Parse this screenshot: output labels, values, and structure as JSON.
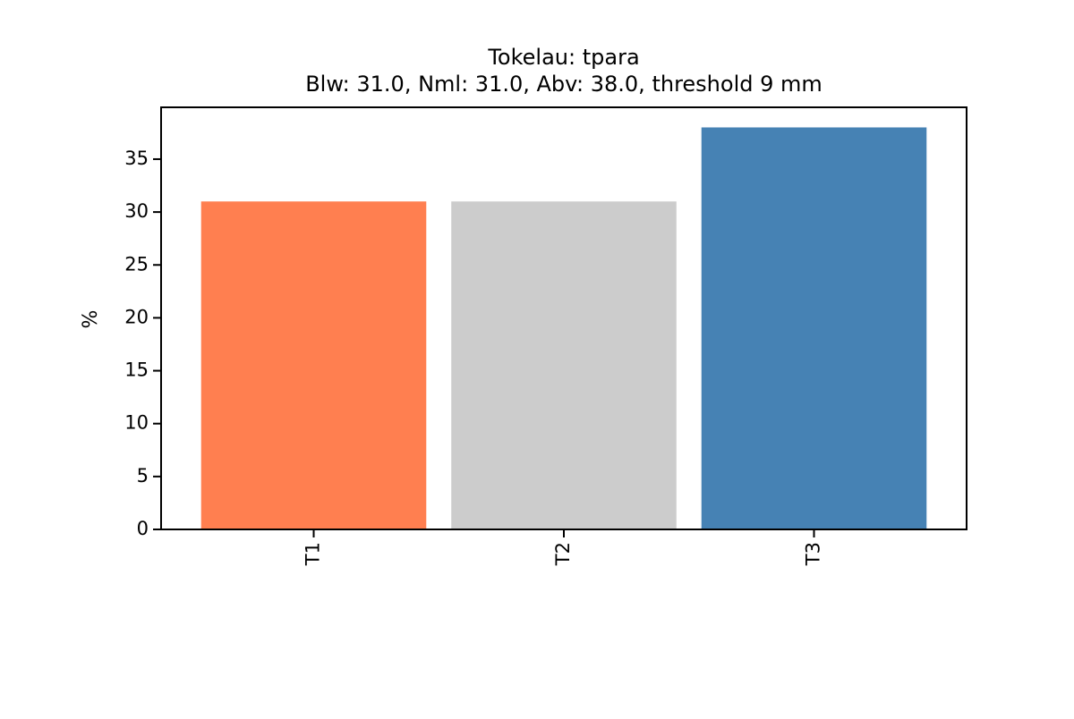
{
  "chart_data": {
    "type": "bar",
    "title": "Tokelau: tpara",
    "subtitle": "Blw: 31.0, Nml: 31.0, Abv: 38.0, threshold 9 mm",
    "xlabel": "",
    "ylabel": "%",
    "categories": [
      "T1",
      "T2",
      "T3"
    ],
    "values": [
      31.0,
      31.0,
      38.0
    ],
    "colors": [
      "#ff7f50",
      "#cccccc",
      "#4682b4"
    ],
    "ylim": [
      0,
      39.9
    ],
    "yticks": [
      0,
      5,
      10,
      15,
      20,
      25,
      30,
      35
    ],
    "grid": false,
    "legend": "none"
  }
}
